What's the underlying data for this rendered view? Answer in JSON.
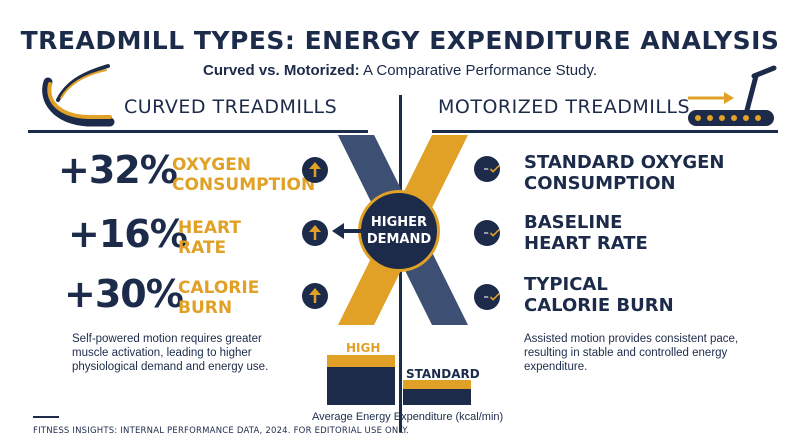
{
  "header": {
    "title": "TREADMILL TYPES: ENERGY EXPENDITURE ANALYSIS",
    "subtitle_bold": "Curved vs. Motorized:",
    "subtitle_rest": " A Comparative Performance Study."
  },
  "left": {
    "heading": "CURVED TREADMILLS",
    "metrics": [
      {
        "value": "+32%",
        "line1": "OXYGEN",
        "line2": "CONSUMPTION",
        "icon": "arrow-up-icon"
      },
      {
        "value": "+16%",
        "line1": "HEART",
        "line2": "RATE",
        "icon": "arrow-up-icon"
      },
      {
        "value": "+30%",
        "line1": "CALORIE",
        "line2": "BURN",
        "icon": "arrow-up-icon"
      }
    ],
    "description": [
      "Self-powered motion requires greater",
      "muscle activation, leading to higher",
      "physiological demand and energy use."
    ]
  },
  "right": {
    "heading": "MOTORIZED TREADMILLS",
    "metrics": [
      {
        "line1": "STANDARD OXYGEN",
        "line2": "CONSUMPTION",
        "icon": "dash-check-icon"
      },
      {
        "line1": "BASELINE",
        "line2": "HEART RATE",
        "icon": "dash-check-icon"
      },
      {
        "line1": "TYPICAL",
        "line2": "CALORIE BURN",
        "icon": "dash-check-icon"
      }
    ],
    "description": [
      "Assisted motion provides consistent pace,",
      "resulting in stable and controlled energy",
      "expenditure."
    ]
  },
  "center": {
    "badge_line1": "HIGHER",
    "badge_line2": "DEMAND"
  },
  "bar_chart": {
    "high_label": "HIGH",
    "standard_label": "STANDARD",
    "axis_label": "Average Energy Expenditure (kcal/min)"
  },
  "footer": "FITNESS INSIGHTS: INTERNAL PERFORMANCE DATA, 2024. FOR EDITORIAL USE ONLY.",
  "colors": {
    "navy": "#1c2b4a",
    "gold": "#e0a126",
    "steel": "#3d4f73"
  }
}
